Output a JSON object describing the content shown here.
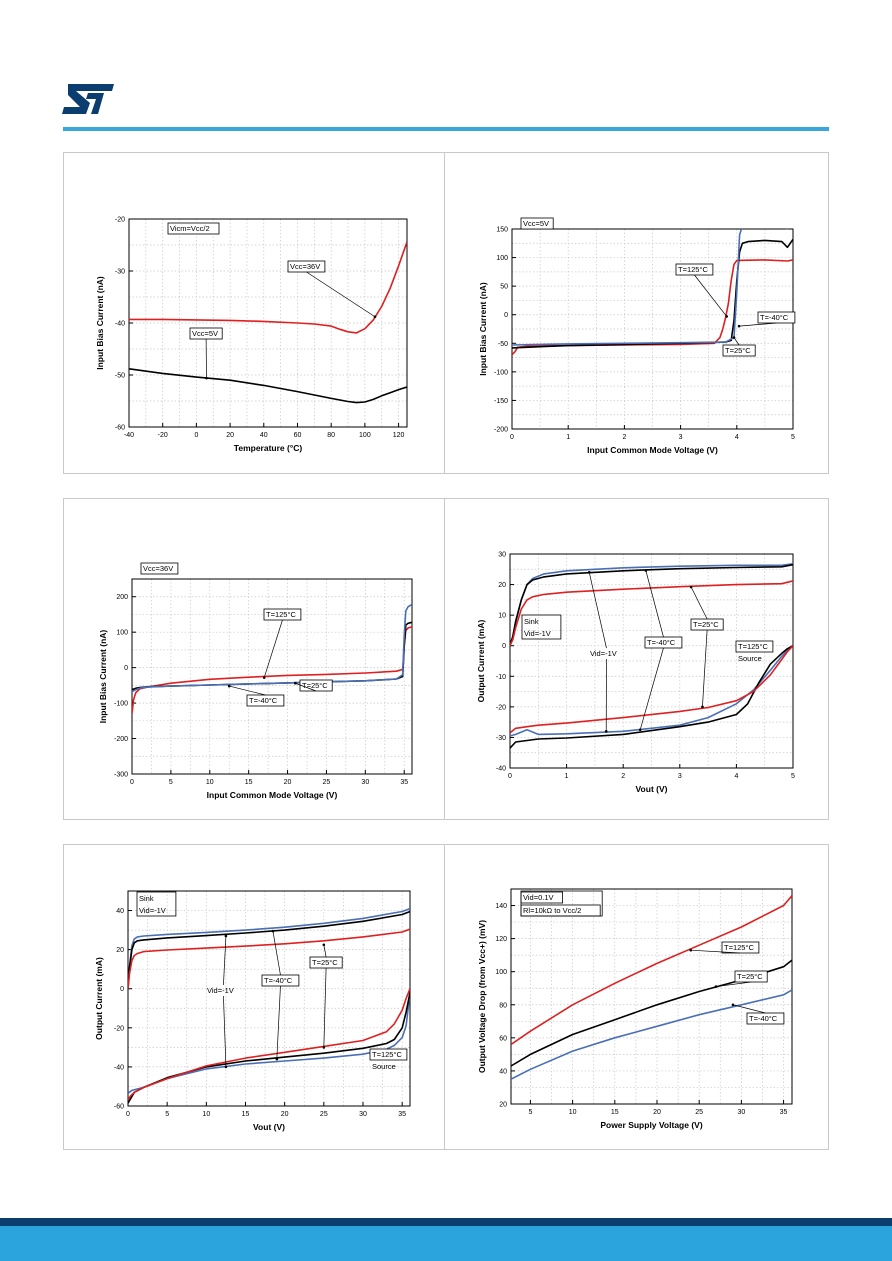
{
  "brand": {
    "logo_text": "ST",
    "accent": "#3aa7dc",
    "footer_dark": "#0b3d6e",
    "footer_light": "#2ba3dc"
  },
  "colors": {
    "black": "#000000",
    "red": "#e02020",
    "blue": "#4a6fb5",
    "grid": "#c8c8c8"
  },
  "chart_data": [
    {
      "type": "line",
      "title": "",
      "xlabel": "Temperature (°C)",
      "ylabel": "Input Bias Current (nA)",
      "xlim": [
        -40,
        125
      ],
      "ylim": [
        -60,
        -20
      ],
      "xticks": [
        -40,
        -20,
        0,
        20,
        40,
        60,
        80,
        100,
        120
      ],
      "yticks": [
        -60,
        -50,
        -40,
        -30,
        -20
      ],
      "grid": true,
      "series": [
        {
          "name": "Vcc=36V",
          "color": "red",
          "x": [
            -40,
            -20,
            0,
            20,
            40,
            60,
            70,
            80,
            85,
            90,
            95,
            100,
            105,
            110,
            115,
            120,
            125
          ],
          "y": [
            -39.3,
            -39.3,
            -39.4,
            -39.5,
            -39.7,
            -40.0,
            -40.2,
            -40.6,
            -41.2,
            -41.7,
            -41.9,
            -41.1,
            -39.4,
            -36.8,
            -33.3,
            -29.0,
            -24.4
          ]
        },
        {
          "name": "Vcc=5V",
          "color": "black",
          "x": [
            -40,
            -20,
            0,
            20,
            40,
            60,
            80,
            90,
            95,
            100,
            105,
            110,
            115,
            120,
            125
          ],
          "y": [
            -48.8,
            -49.7,
            -50.4,
            -51.0,
            -52.0,
            -53.2,
            -54.5,
            -55.1,
            -55.3,
            -55.2,
            -54.7,
            -54.0,
            -53.4,
            -52.8,
            -52.3
          ]
        }
      ],
      "annotations": [
        "Vicm=Vcc/2",
        "Vcc=36V",
        "Vcc=5V"
      ]
    },
    {
      "type": "line",
      "title": "",
      "xlabel": "Input Common Mode Voltage (V)",
      "ylabel": "Input Bias Current (nA)",
      "xlim": [
        0,
        5
      ],
      "ylim": [
        -200,
        150
      ],
      "xticks": [
        0,
        1,
        2,
        3,
        4,
        5
      ],
      "yticks": [
        -200,
        -150,
        -100,
        -50,
        0,
        50,
        100,
        150
      ],
      "grid": true,
      "series": [
        {
          "name": "T=125°C",
          "color": "red",
          "x": [
            0,
            0.05,
            0.1,
            0.3,
            1,
            2,
            3,
            3.6,
            3.7,
            3.75,
            3.8,
            3.85,
            3.9,
            3.95,
            4,
            4.5,
            4.9,
            5
          ],
          "y": [
            -70,
            -65,
            -57,
            -55,
            -54,
            -53,
            -52,
            -50,
            -40,
            -25,
            -5,
            20,
            60,
            88,
            95,
            96,
            94,
            96
          ]
        },
        {
          "name": "T=25°C",
          "color": "black",
          "x": [
            0,
            0.5,
            1,
            2,
            3,
            3.8,
            3.9,
            3.95,
            4,
            4.05,
            4.1,
            4.2,
            4.5,
            4.8,
            4.9,
            5
          ],
          "y": [
            -58,
            -56,
            -54,
            -52,
            -50,
            -48,
            -45,
            -10,
            60,
            110,
            125,
            128,
            130,
            128,
            118,
            132
          ]
        },
        {
          "name": "T=-40°C",
          "color": "blue",
          "x": [
            0,
            0.5,
            1,
            2,
            3,
            3.8,
            3.95,
            4.0,
            4.05,
            4.1,
            4.2,
            4.6,
            4.8,
            4.9,
            5
          ],
          "y": [
            -53,
            -52,
            -51,
            -50,
            -49,
            -48,
            -40,
            40,
            140,
            155,
            157,
            158,
            156,
            150,
            160
          ]
        }
      ],
      "annotations": [
        "Vcc=5V",
        "T=125°C",
        "T=-40°C",
        "T=25°C"
      ]
    },
    {
      "type": "line",
      "title": "",
      "xlabel": "Input Common Mode Voltage (V)",
      "ylabel": "Input Bias Current (nA)",
      "xlim": [
        0,
        36
      ],
      "ylim": [
        -300,
        250
      ],
      "xticks": [
        0,
        5,
        10,
        15,
        20,
        25,
        30,
        35
      ],
      "yticks": [
        -300,
        -200,
        -100,
        0,
        100,
        200
      ],
      "grid": true,
      "series": [
        {
          "name": "T=125°C",
          "color": "red",
          "x": [
            0,
            0.2,
            0.5,
            1,
            2,
            5,
            10,
            15,
            20,
            25,
            30,
            34,
            34.8,
            35,
            35.2,
            35.5,
            36
          ],
          "y": [
            -130,
            -90,
            -70,
            -60,
            -55,
            -44,
            -33,
            -27,
            -22,
            -19,
            -15,
            -10,
            -5,
            60,
            105,
            112,
            115
          ]
        },
        {
          "name": "T=25°C",
          "color": "black",
          "x": [
            0,
            0.5,
            1,
            2,
            5,
            10,
            15,
            20,
            25,
            30,
            34,
            34.8,
            35,
            35.2,
            35.5,
            36
          ],
          "y": [
            -62,
            -58,
            -56,
            -54,
            -52,
            -49,
            -46,
            -43,
            -40,
            -37,
            -32,
            -25,
            60,
            120,
            125,
            128
          ]
        },
        {
          "name": "T=-40°C",
          "color": "blue",
          "x": [
            0,
            0.5,
            1,
            2,
            5,
            10,
            15,
            20,
            25,
            30,
            34,
            34.8,
            35,
            35.2,
            35.5,
            36
          ],
          "y": [
            -68,
            -62,
            -58,
            -55,
            -52,
            -49,
            -46,
            -43,
            -40,
            -37,
            -32,
            -20,
            90,
            160,
            172,
            178
          ]
        }
      ],
      "annotations": [
        "Vcc=36V",
        "T=125°C",
        "T=-40°C",
        "T=25°C"
      ]
    },
    {
      "type": "line",
      "title": "",
      "xlabel": "Vout (V)",
      "ylabel": "Output Current (mA)",
      "xlim": [
        0,
        5
      ],
      "ylim": [
        -40,
        30
      ],
      "xticks": [
        0,
        1,
        2,
        3,
        4,
        5
      ],
      "yticks": [
        -40,
        -30,
        -20,
        -10,
        0,
        10,
        20,
        30
      ],
      "grid": true,
      "series": [
        {
          "name": "Sink T=-40°C",
          "color": "blue",
          "x": [
            0,
            0.05,
            0.1,
            0.2,
            0.3,
            0.4,
            0.6,
            1,
            2,
            3,
            4,
            4.8,
            5
          ],
          "y": [
            0,
            3,
            8,
            15,
            20,
            22,
            23.5,
            24.5,
            25.5,
            26,
            26.3,
            26.3,
            26.8
          ]
        },
        {
          "name": "Sink T=25°C",
          "color": "black",
          "x": [
            0,
            0.05,
            0.1,
            0.2,
            0.3,
            0.4,
            0.6,
            1,
            2,
            3,
            4,
            4.8,
            5
          ],
          "y": [
            0,
            3,
            8,
            15,
            20,
            21.5,
            22.5,
            23.5,
            24.5,
            25.2,
            25.6,
            25.8,
            26.5
          ]
        },
        {
          "name": "Sink T=125°C",
          "color": "red",
          "x": [
            0,
            0.05,
            0.1,
            0.2,
            0.3,
            0.4,
            0.6,
            1,
            2,
            3,
            4,
            4.8,
            5
          ],
          "y": [
            0,
            2,
            6,
            12,
            15,
            16,
            16.8,
            17.5,
            18.5,
            19.3,
            20,
            20.3,
            21.2
          ]
        },
        {
          "name": "Source T=-40°C",
          "color": "blue",
          "x": [
            0,
            0.1,
            0.3,
            0.5,
            1,
            2,
            3,
            3.5,
            4,
            4.3,
            4.6,
            4.8,
            4.9,
            5
          ],
          "y": [
            -29.5,
            -29,
            -27.5,
            -29,
            -28.8,
            -28,
            -26,
            -23.5,
            -19,
            -14.5,
            -8,
            -3.5,
            -1.5,
            0
          ]
        },
        {
          "name": "Source T=25°C",
          "color": "black",
          "x": [
            0,
            0.1,
            0.3,
            0.5,
            1,
            2,
            3,
            3.5,
            4,
            4.2,
            4.4,
            4.6,
            4.8,
            4.9,
            5
          ],
          "y": [
            -33.5,
            -31.5,
            -31,
            -30.5,
            -30.2,
            -29,
            -26.5,
            -25,
            -22.5,
            -19,
            -12,
            -6,
            -2.5,
            -1,
            0
          ]
        },
        {
          "name": "Source T=125°C",
          "color": "red",
          "x": [
            0,
            0.1,
            0.3,
            0.5,
            1,
            2,
            3,
            3.5,
            4,
            4.3,
            4.6,
            4.8,
            4.9,
            5
          ],
          "y": [
            -28.5,
            -27,
            -26.5,
            -26,
            -25.3,
            -23.5,
            -21.5,
            -20.2,
            -18,
            -15,
            -9.5,
            -4.5,
            -2,
            0
          ]
        }
      ],
      "annotations": [
        "Sink",
        "Vid=-1V",
        "T=-40°C",
        "T=25°C",
        "T=125°C",
        "Source",
        "Vid=1V"
      ]
    },
    {
      "type": "line",
      "title": "",
      "xlabel": "Vout (V)",
      "ylabel": "Output Current (mA)",
      "xlim": [
        0,
        36
      ],
      "ylim": [
        -60,
        50
      ],
      "xticks": [
        0,
        5,
        10,
        15,
        20,
        25,
        30,
        35
      ],
      "yticks": [
        -60,
        -40,
        -20,
        0,
        20,
        40
      ],
      "grid": true,
      "series": [
        {
          "name": "Sink T=-40°C",
          "color": "blue",
          "x": [
            0,
            0.2,
            0.5,
            0.8,
            1.2,
            2,
            5,
            10,
            15,
            20,
            25,
            30,
            35,
            36
          ],
          "y": [
            0,
            12,
            22,
            25.5,
            26.5,
            27,
            27.8,
            28.8,
            30,
            31.5,
            33.5,
            36,
            39.5,
            41
          ]
        },
        {
          "name": "Sink T=25°C",
          "color": "black",
          "x": [
            0,
            0.2,
            0.5,
            0.8,
            1.2,
            2,
            5,
            10,
            15,
            20,
            25,
            30,
            35,
            36
          ],
          "y": [
            0,
            11,
            20,
            23.5,
            24.5,
            25,
            26,
            27.2,
            28.5,
            30,
            32,
            34.5,
            38,
            39.5
          ]
        },
        {
          "name": "Sink T=125°C",
          "color": "red",
          "x": [
            0,
            0.2,
            0.5,
            0.8,
            1.2,
            2,
            5,
            10,
            15,
            20,
            25,
            30,
            35,
            36
          ],
          "y": [
            0,
            8,
            14.5,
            17,
            18,
            19,
            19.8,
            20.8,
            21.8,
            23,
            24.5,
            26.5,
            29,
            30.5
          ]
        },
        {
          "name": "Source T=-40°C",
          "color": "blue",
          "x": [
            0,
            0.5,
            1,
            2,
            3,
            5,
            10,
            15,
            20,
            25,
            30,
            33,
            34,
            35,
            35.5,
            36
          ],
          "y": [
            -53.5,
            -52,
            -51.5,
            -50.5,
            -49,
            -46,
            -41,
            -38.5,
            -37,
            -35.5,
            -33.5,
            -31,
            -29,
            -25,
            -19,
            -2
          ]
        },
        {
          "name": "Source T=25°C",
          "color": "black",
          "x": [
            0,
            0.3,
            0.8,
            2,
            5,
            10,
            15,
            20,
            25,
            30,
            33,
            34,
            35,
            35.5,
            36
          ],
          "y": [
            -58.5,
            -56.5,
            -53,
            -50.5,
            -45.5,
            -40,
            -37,
            -35,
            -33,
            -30.5,
            -28,
            -26,
            -20,
            -12,
            -2
          ]
        },
        {
          "name": "Source T=125°C",
          "color": "red",
          "x": [
            0,
            0.3,
            0.8,
            2,
            5,
            10,
            15,
            20,
            25,
            30,
            33,
            34,
            35,
            35.5,
            36
          ],
          "y": [
            -57,
            -55,
            -53,
            -50.5,
            -46,
            -39.5,
            -35.5,
            -32.5,
            -29.5,
            -26.5,
            -22,
            -18,
            -11,
            -5,
            0
          ]
        }
      ],
      "annotations": [
        "Sink",
        "Vid=-1V",
        "T=-40°C",
        "T=25°C",
        "T=125°C",
        "Source",
        "Vid=1V"
      ]
    },
    {
      "type": "line",
      "title": "",
      "xlabel": "Power Supply Voltage (V)",
      "ylabel": "Output Voltage Drop (from Vcc+) (mV)",
      "xlim": [
        2.7,
        36
      ],
      "ylim": [
        20,
        150
      ],
      "xticks": [
        5,
        10,
        15,
        20,
        25,
        30,
        35
      ],
      "yticks": [
        20,
        40,
        60,
        80,
        100,
        120,
        140
      ],
      "grid": true,
      "series": [
        {
          "name": "T=125°C",
          "color": "red",
          "x": [
            2.7,
            5,
            10,
            15,
            20,
            25,
            30,
            35,
            36
          ],
          "y": [
            56,
            64,
            80,
            93,
            105,
            116,
            127,
            140,
            146
          ]
        },
        {
          "name": "T=25°C",
          "color": "black",
          "x": [
            2.7,
            5,
            10,
            15,
            20,
            25,
            30,
            35,
            36
          ],
          "y": [
            43,
            50,
            62,
            71,
            80,
            88,
            95,
            103,
            107
          ]
        },
        {
          "name": "T=-40°C",
          "color": "blue",
          "x": [
            2.7,
            5,
            10,
            15,
            20,
            25,
            30,
            35,
            36
          ],
          "y": [
            35,
            41,
            52,
            60,
            67,
            74,
            80,
            86,
            89
          ]
        }
      ],
      "annotations": [
        "Vid=0.1V",
        "Rl=10kΩ to Vcc/2",
        "T=125°C",
        "T=25°C",
        "T=-40°C"
      ]
    }
  ]
}
